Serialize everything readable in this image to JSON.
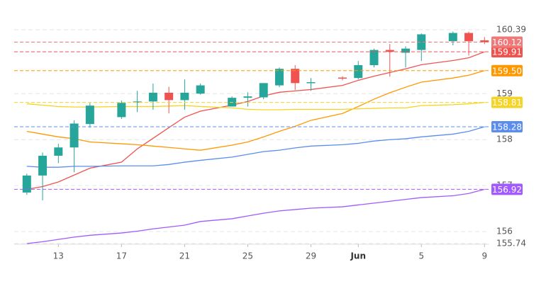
{
  "chart_data": {
    "type": "candlestick",
    "x": [
      11,
      12,
      13,
      14,
      15,
      17,
      18,
      19,
      20,
      21,
      22,
      24,
      25,
      26,
      27,
      28,
      29,
      31,
      32,
      33,
      34,
      35,
      36,
      38,
      39,
      40
    ],
    "open": [
      156.85,
      157.22,
      157.65,
      157.83,
      158.34,
      158.49,
      158.82,
      158.83,
      159.02,
      158.86,
      159.0,
      158.72,
      158.91,
      158.92,
      159.18,
      159.54,
      159.23,
      159.35,
      159.34,
      159.62,
      159.95,
      159.89,
      159.95,
      160.14,
      160.32,
      160.16
    ],
    "high": [
      157.26,
      157.72,
      157.91,
      158.42,
      158.8,
      158.85,
      159.06,
      159.22,
      159.15,
      159.31,
      159.22,
      158.94,
      159.03,
      159.23,
      159.57,
      159.62,
      159.34,
      159.38,
      159.71,
      159.98,
      160.08,
      160.03,
      160.31,
      160.35,
      160.35,
      160.23
    ],
    "low": [
      156.8,
      156.68,
      157.49,
      157.29,
      158.26,
      158.45,
      158.6,
      158.65,
      158.57,
      158.65,
      158.98,
      158.72,
      158.72,
      158.88,
      159.14,
      159.08,
      159.06,
      159.29,
      159.31,
      159.57,
      159.37,
      159.57,
      159.71,
      160.05,
      159.83,
      160.08
    ],
    "close": [
      157.22,
      157.65,
      157.83,
      158.35,
      158.74,
      158.8,
      158.83,
      159.02,
      158.86,
      159.02,
      159.18,
      158.91,
      158.94,
      159.23,
      159.54,
      159.23,
      159.25,
      159.33,
      159.62,
      159.95,
      159.91,
      159.98,
      160.29,
      160.32,
      160.14,
      160.12
    ],
    "up_color": "#26a69a",
    "down_color": "#ef5350",
    "close_label": "160.12",
    "close_label_color": "#f07878",
    "lines": [
      {
        "color": "#ef5350",
        "label": "159.91",
        "values": [
          156.92,
          156.98,
          157.08,
          157.23,
          157.38,
          157.51,
          157.8,
          158.03,
          158.26,
          158.49,
          158.62,
          158.75,
          158.83,
          158.95,
          159.03,
          159.06,
          159.09,
          159.18,
          159.29,
          159.38,
          159.46,
          159.54,
          159.63,
          159.72,
          159.78,
          159.91
        ]
      },
      {
        "color": "#ff9800",
        "label": "159.50",
        "values": [
          158.18,
          158.12,
          158.06,
          158.02,
          157.95,
          157.91,
          157.89,
          157.86,
          157.83,
          157.8,
          157.77,
          157.88,
          157.95,
          158.06,
          158.18,
          158.29,
          158.42,
          158.57,
          158.72,
          158.88,
          159.02,
          159.14,
          159.25,
          159.34,
          159.4,
          159.5
        ]
      },
      {
        "color": "#f5d423",
        "label": "158.81",
        "values": [
          158.78,
          158.75,
          158.72,
          158.71,
          158.71,
          158.72,
          158.72,
          158.72,
          158.73,
          158.74,
          158.72,
          158.69,
          158.66,
          158.65,
          158.65,
          158.66,
          158.66,
          158.66,
          158.67,
          158.68,
          158.69,
          158.69,
          158.74,
          158.76,
          158.78,
          158.81
        ]
      },
      {
        "color": "#5b8def",
        "label": "158.28",
        "values": [
          157.42,
          157.4,
          157.4,
          157.42,
          157.42,
          157.43,
          157.43,
          157.43,
          157.46,
          157.51,
          157.55,
          157.62,
          157.68,
          157.74,
          157.77,
          157.82,
          157.86,
          157.89,
          157.92,
          157.97,
          158.0,
          158.02,
          158.06,
          158.12,
          158.18,
          158.28
        ]
      },
      {
        "color": "#a259ff",
        "label": "156.92",
        "values": [
          155.74,
          155.78,
          155.83,
          155.88,
          155.92,
          155.97,
          156.01,
          156.06,
          156.1,
          156.14,
          156.22,
          156.28,
          156.34,
          156.4,
          156.45,
          156.48,
          156.51,
          156.54,
          156.58,
          156.62,
          156.66,
          156.7,
          156.74,
          156.78,
          156.83,
          156.92
        ]
      }
    ],
    "xlim": [
      10.2,
      40.3
    ],
    "xticks": [
      13,
      17,
      21,
      25,
      29,
      {
        "value": 32,
        "label": "Jun"
      },
      {
        "value": 36,
        "label": "5"
      },
      {
        "value": 40,
        "label": "9"
      }
    ],
    "ylim": [
      155.74,
      160.39
    ],
    "yticks": [
      155.74,
      156,
      157,
      158,
      159,
      160.39
    ],
    "grid": true
  }
}
